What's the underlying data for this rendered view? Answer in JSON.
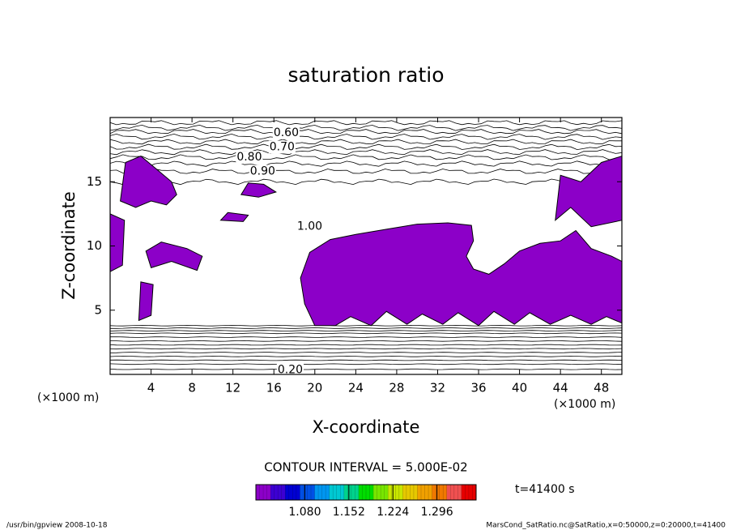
{
  "chart_data": {
    "type": "contour",
    "title": "saturation ratio",
    "x_label": "X-coordinate",
    "y_label": "Z-coordinate",
    "x_unit": "(×1000 m)",
    "y_unit": "(×1000 m)",
    "xlim": [
      0,
      50
    ],
    "ylim": [
      0,
      20
    ],
    "xticks": [
      4,
      8,
      12,
      16,
      20,
      24,
      28,
      32,
      36,
      40,
      44,
      48
    ],
    "yticks": [
      5,
      10,
      15
    ],
    "shade_color": "#8c00c8",
    "shaded_regions": [
      {
        "x": [
          20,
          19,
          18.6,
          19.5,
          21.5,
          24,
          27,
          30,
          33,
          35.3,
          35.5,
          34.8,
          35.5,
          37,
          38.5,
          40,
          42,
          44,
          45.5,
          47,
          49,
          50,
          50,
          48.5,
          47,
          45,
          43,
          41,
          39.5,
          37.5,
          36,
          34,
          32.5,
          30.5,
          29,
          27,
          25.5,
          23.5,
          22
        ],
        "z": [
          3.8,
          5.5,
          7.5,
          9.5,
          10.5,
          10.9,
          11.3,
          11.7,
          11.8,
          11.6,
          10.4,
          9.2,
          8.2,
          7.8,
          8.6,
          9.6,
          10.2,
          10.4,
          11.2,
          9.8,
          9.2,
          8.8,
          4,
          4.5,
          3.9,
          4.6,
          3.9,
          4.8,
          3.9,
          4.9,
          3.8,
          4.8,
          3.9,
          4.7,
          3.9,
          4.9,
          3.8,
          4.5,
          3.8
        ]
      },
      {
        "x": [
          1,
          2.5,
          4,
          5.5,
          6.5,
          6,
          4.5,
          3,
          1.5
        ],
        "z": [
          13.5,
          13,
          13.5,
          13.2,
          14,
          15,
          16,
          17,
          16.5
        ]
      },
      {
        "x": [
          4,
          6,
          8.5,
          9,
          7.5,
          5,
          3.5
        ],
        "z": [
          8.3,
          8.8,
          8.1,
          9.2,
          9.8,
          10.3,
          9.6
        ]
      },
      {
        "x": [
          10.8,
          13,
          13.5,
          11.5
        ],
        "z": [
          12,
          11.9,
          12.4,
          12.6
        ]
      },
      {
        "x": [
          12.8,
          14.5,
          16.2,
          15,
          13.5
        ],
        "z": [
          14,
          13.8,
          14.2,
          14.8,
          14.9
        ]
      },
      {
        "x": [
          0,
          1.2,
          1.4,
          0
        ],
        "z": [
          8,
          8.5,
          12,
          12.5
        ]
      },
      {
        "x": [
          43.5,
          45,
          47,
          50,
          50,
          48,
          46,
          44
        ],
        "z": [
          12,
          13,
          11.5,
          12,
          17,
          16.5,
          15,
          15.5
        ]
      },
      {
        "x": [
          2.8,
          4,
          4.2,
          3
        ],
        "z": [
          4.2,
          4.6,
          7,
          7.2
        ]
      }
    ],
    "contour_z_upper": [
      19.6,
      19.2,
      18.9,
      18.5,
      18.1,
      17.7,
      17.3,
      16.9,
      16.4,
      15.8,
      15
    ],
    "contour_z_lower": [
      3.8,
      3.6,
      3.4,
      3.2,
      2.9,
      2.6,
      2.3,
      2.0,
      1.7,
      1.4,
      1.1,
      0.8,
      0.4
    ],
    "contour_labels": [
      {
        "label": "0.60",
        "x": 17.2,
        "z": 18.8
      },
      {
        "label": "0.70",
        "x": 16.8,
        "z": 17.7
      },
      {
        "label": "0.80",
        "x": 13.6,
        "z": 16.9
      },
      {
        "label": "0.90",
        "x": 14.9,
        "z": 15.8
      },
      {
        "label": "1.00",
        "x": 19.5,
        "z": 11.5
      },
      {
        "label": "0.20",
        "x": 17.6,
        "z": 0.35
      }
    ],
    "contour_interval": "CONTOUR INTERVAL = 5.000E-02",
    "time_label": "t=41400 s",
    "colorbar_lim": [
      1.0,
      1.36
    ],
    "colorbar_ticks": [
      {
        "value": 1.08,
        "label": "1.080"
      },
      {
        "value": 1.152,
        "label": "1.152"
      },
      {
        "value": 1.224,
        "label": "1.224"
      },
      {
        "value": 1.296,
        "label": "1.296"
      }
    ],
    "colorbar_colors": [
      "#8c00c8",
      "#3c00d2",
      "#0000d2",
      "#0050e6",
      "#0096f0",
      "#00c8d2",
      "#00d28c",
      "#00dc00",
      "#78e600",
      "#c8e600",
      "#e6c800",
      "#f0a000",
      "#f07800",
      "#f05050",
      "#e60000"
    ],
    "footer_left": "/usr/bin/gpview  2008-10-18",
    "footer_right": "MarsCond_SatRatio.nc@SatRatio,x=0:50000,z=0:20000,t=41400"
  }
}
